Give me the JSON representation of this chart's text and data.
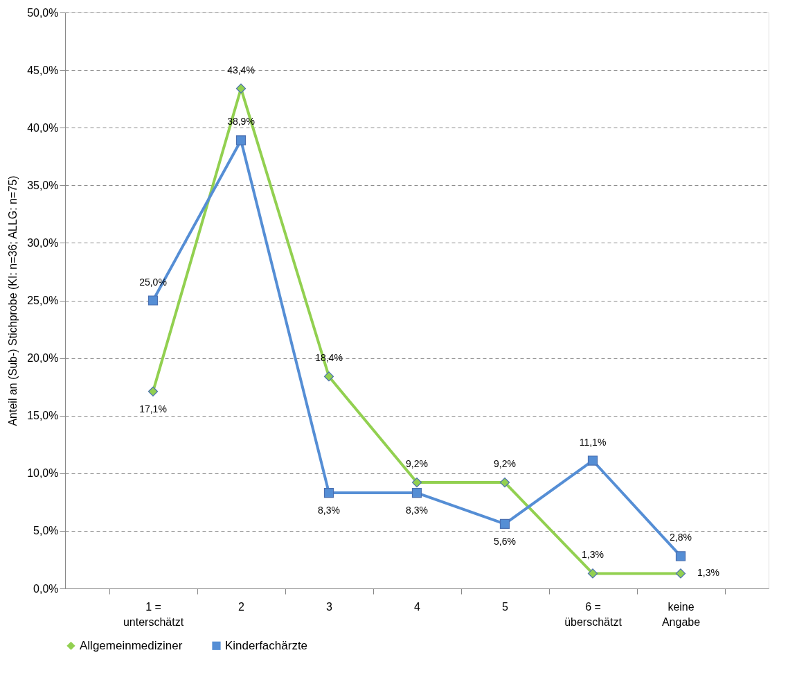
{
  "chart_data": {
    "type": "line",
    "ylabel": "Anteil an (Sub-) Stichprobe (KI: n=36; ALLG: n=75)",
    "categories": [
      "1 = unterschätzt",
      "2",
      "3",
      "4",
      "5",
      "6 = überschätzt",
      "keine Angabe"
    ],
    "series": [
      {
        "name": "Allgemeinmediziner",
        "color": "#92d050",
        "marker": "diamond",
        "values": [
          17.1,
          43.4,
          18.4,
          9.2,
          9.2,
          1.3,
          1.3
        ],
        "value_labels": [
          "17,1%",
          "43,4%",
          "18,4%",
          "9,2%",
          "9,2%",
          "1,3%",
          "1,3%"
        ]
      },
      {
        "name": "Kinderfachärzte",
        "color": "#558ed5",
        "marker": "square",
        "values": [
          25.0,
          38.9,
          8.3,
          8.3,
          5.6,
          11.1,
          2.8
        ],
        "value_labels": [
          "25,0%",
          "38,9%",
          "8,3%",
          "8,3%",
          "5,6%",
          "11,1%",
          "2,8%"
        ]
      }
    ],
    "ylim": [
      0,
      50
    ],
    "yticks": [
      {
        "value": 0,
        "label": "0,0%"
      },
      {
        "value": 5,
        "label": "5,0%"
      },
      {
        "value": 10,
        "label": "10,0%"
      },
      {
        "value": 15,
        "label": "15,0%"
      },
      {
        "value": 20,
        "label": "20,0%"
      },
      {
        "value": 25,
        "label": "25,0%"
      },
      {
        "value": 30,
        "label": "30,0%"
      },
      {
        "value": 35,
        "label": "35,0%"
      },
      {
        "value": 40,
        "label": "40,0%"
      },
      {
        "value": 45,
        "label": "45,0%"
      },
      {
        "value": 50,
        "label": "50,0%"
      }
    ],
    "grid": "y",
    "legend": "bottom",
    "line_style": "solid"
  }
}
